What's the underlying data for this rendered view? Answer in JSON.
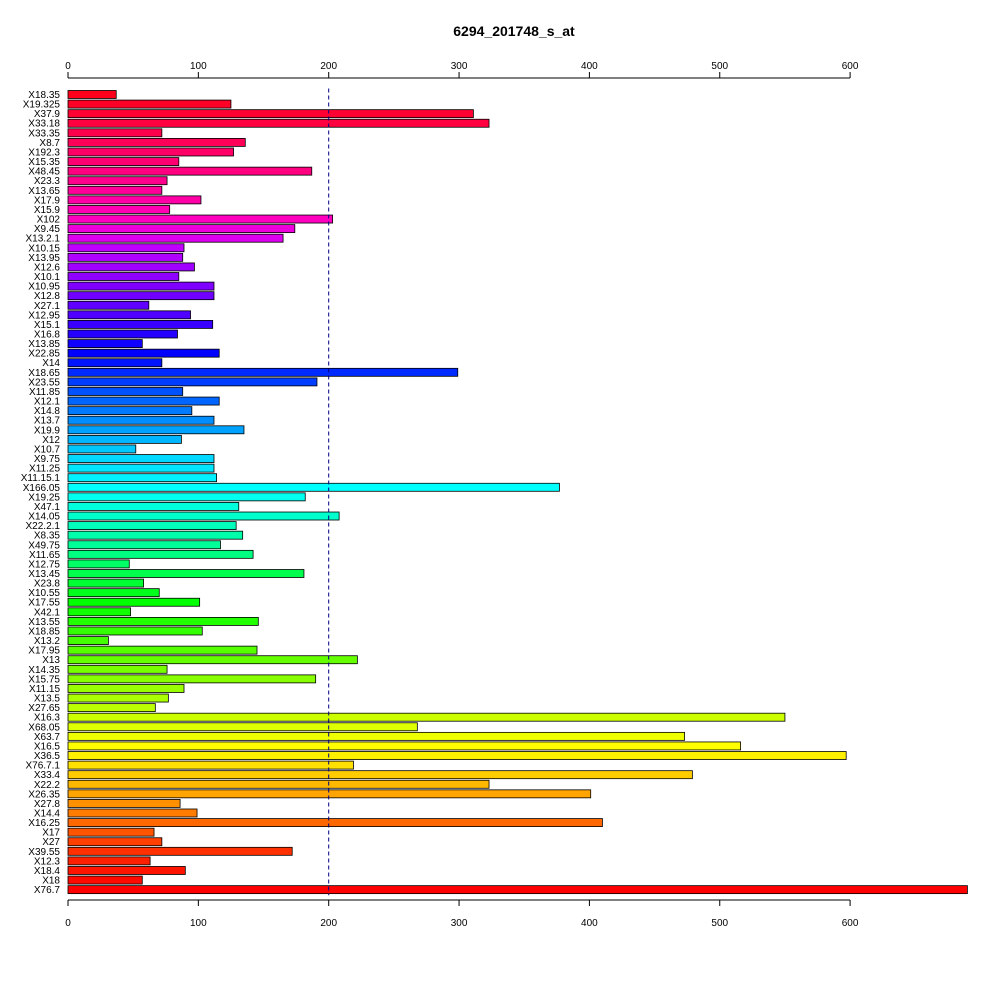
{
  "chart_data": {
    "type": "bar",
    "orientation": "horizontal",
    "title": "6294_201748_s_at",
    "xlabel": "",
    "ylabel": "",
    "xlim": [
      0,
      690
    ],
    "xticks": [
      0,
      100,
      200,
      300,
      400,
      500,
      600
    ],
    "axes": [
      "top",
      "bottom"
    ],
    "reference_line": {
      "x": 200,
      "style": "dashed",
      "color": "#000080"
    },
    "categories": [
      "X18.35",
      "X19.325",
      "X37.9",
      "X33.18",
      "X33.35",
      "X8.7",
      "X192.3",
      "X15.35",
      "X48.45",
      "X23.3",
      "X13.65",
      "X17.9",
      "X15.9",
      "X102",
      "X9.45",
      "X13.2.1",
      "X10.15",
      "X13.95",
      "X12.6",
      "X10.1",
      "X10.95",
      "X12.8",
      "X27.1",
      "X12.95",
      "X15.1",
      "X16.8",
      "X13.85",
      "X22.85",
      "X14",
      "X18.65",
      "X23.55",
      "X11.85",
      "X12.1",
      "X14.8",
      "X13.7",
      "X19.9",
      "X12",
      "X10.7",
      "X9.75",
      "X11.25",
      "X11.15.1",
      "X166.05",
      "X19.25",
      "X47.1",
      "X14.05",
      "X22.2.1",
      "X8.35",
      "X49.75",
      "X11.65",
      "X12.75",
      "X13.45",
      "X23.8",
      "X10.55",
      "X17.55",
      "X42.1",
      "X13.55",
      "X18.85",
      "X13.2",
      "X17.95",
      "X13",
      "X14.35",
      "X15.75",
      "X11.15",
      "X13.5",
      "X27.65",
      "X16.3",
      "X68.05",
      "X63.7",
      "X16.5",
      "X36.5",
      "X76.7.1",
      "X33.4",
      "X22.2",
      "X26.35",
      "X27.8",
      "X14.4",
      "X16.25",
      "X17",
      "X27",
      "X39.55",
      "X12.3",
      "X18.4",
      "X18",
      "X76.7"
    ],
    "values": [
      37,
      125,
      311,
      323,
      72,
      136,
      127,
      85,
      187,
      76,
      72,
      102,
      78,
      203,
      174,
      165,
      89,
      88,
      97,
      85,
      112,
      112,
      62,
      94,
      111,
      84,
      57,
      116,
      72,
      299,
      191,
      88,
      116,
      95,
      112,
      135,
      87,
      52,
      112,
      112,
      114,
      377,
      182,
      131,
      208,
      129,
      134,
      117,
      142,
      47,
      181,
      58,
      70,
      101,
      48,
      146,
      103,
      31,
      145,
      222,
      76,
      190,
      89,
      77,
      67,
      550,
      268,
      473,
      516,
      597,
      219,
      479,
      323,
      401,
      86,
      99,
      410,
      66,
      72,
      172,
      63,
      90,
      57,
      690
    ],
    "colors": [
      "#ff001c",
      "#ff0027",
      "#ff0033",
      "#ff0040",
      "#ff004d",
      "#ff0059",
      "#ff0066",
      "#ff0073",
      "#ff0080",
      "#ff008c",
      "#ff0099",
      "#ff00a6",
      "#ff00b3",
      "#ff00c0",
      "#ee00dd",
      "#dd00ee",
      "#c000ff",
      "#b000ff",
      "#a000ff",
      "#9000ff",
      "#8000ff",
      "#7000ff",
      "#6000ff",
      "#5000ff",
      "#3a00ff",
      "#2500ff",
      "#1000ff",
      "#0000ff",
      "#0014ff",
      "#002aff",
      "#003eff",
      "#0052ff",
      "#0066ff",
      "#007aff",
      "#008eff",
      "#00a2ff",
      "#00b6ff",
      "#00c8ff",
      "#00d8ff",
      "#00e6ff",
      "#00f2ff",
      "#00ffff",
      "#00ffee",
      "#00ffdd",
      "#00ffcc",
      "#00ffbb",
      "#00ffaa",
      "#00ff99",
      "#00ff80",
      "#00ff66",
      "#00ff4d",
      "#00ff33",
      "#00ff1a",
      "#00ff00",
      "#10ff00",
      "#22ff00",
      "#33ff00",
      "#44ff00",
      "#55ff00",
      "#66ff00",
      "#77ff00",
      "#88ff00",
      "#99ff00",
      "#aaff00",
      "#bbff00",
      "#ccff00",
      "#ddff00",
      "#eeff00",
      "#ffff00",
      "#fff000",
      "#ffe000",
      "#ffcc00",
      "#ffb800",
      "#ffa400",
      "#ff9000",
      "#ff7c00",
      "#ff6800",
      "#ff5400",
      "#ff4000",
      "#ff3000",
      "#ff2000",
      "#ff1400",
      "#ff0a00",
      "#ff0000"
    ]
  }
}
